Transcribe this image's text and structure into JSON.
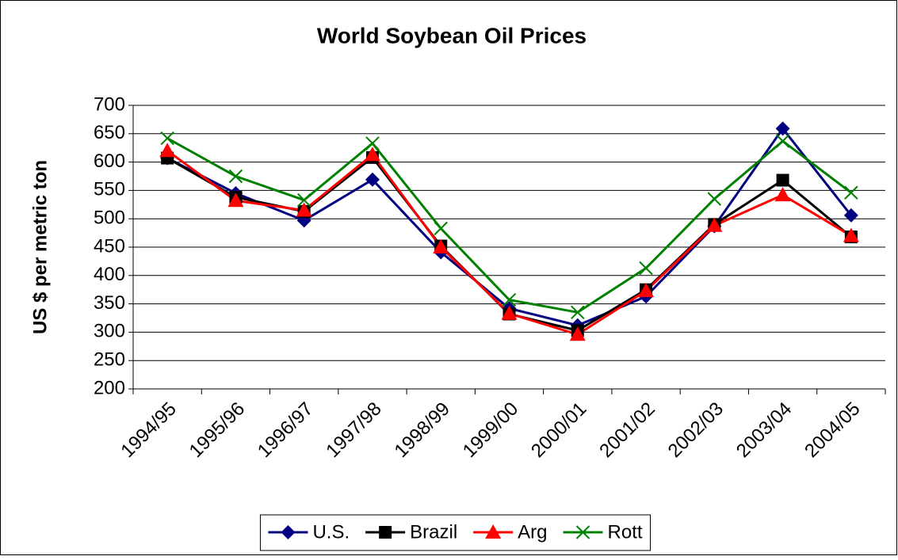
{
  "chart_data": {
    "type": "line",
    "title": "World Soybean Oil Prices",
    "y_label": "US $ per metric ton",
    "categories": [
      "1994/95",
      "1995/96",
      "1996/97",
      "1997/98",
      "1998/99",
      "1999/00",
      "2000/01",
      "2001/02",
      "2002/03",
      "2003/04",
      "2004/05"
    ],
    "series": [
      {
        "name": "U.S.",
        "color": "#000080",
        "marker": "diamond",
        "values": [
          607,
          545,
          497,
          569,
          441,
          342,
          312,
          363,
          487,
          659,
          506
        ]
      },
      {
        "name": "Brazil",
        "color": "#000000",
        "marker": "square",
        "values": [
          607,
          538,
          513,
          608,
          452,
          332,
          303,
          375,
          490,
          568,
          468
        ]
      },
      {
        "name": "Arg",
        "color": "#ff0000",
        "marker": "triangle",
        "values": [
          620,
          532,
          515,
          613,
          450,
          333,
          296,
          373,
          488,
          542,
          470
        ]
      },
      {
        "name": "Rott",
        "color": "#008000",
        "marker": "x",
        "values": [
          642,
          575,
          533,
          633,
          483,
          357,
          335,
          413,
          535,
          637,
          546
        ]
      }
    ],
    "ylim": [
      200,
      700
    ],
    "yticks": [
      200,
      250,
      300,
      350,
      400,
      450,
      500,
      550,
      600,
      650,
      700
    ],
    "grid": true,
    "legend": "bottom"
  }
}
